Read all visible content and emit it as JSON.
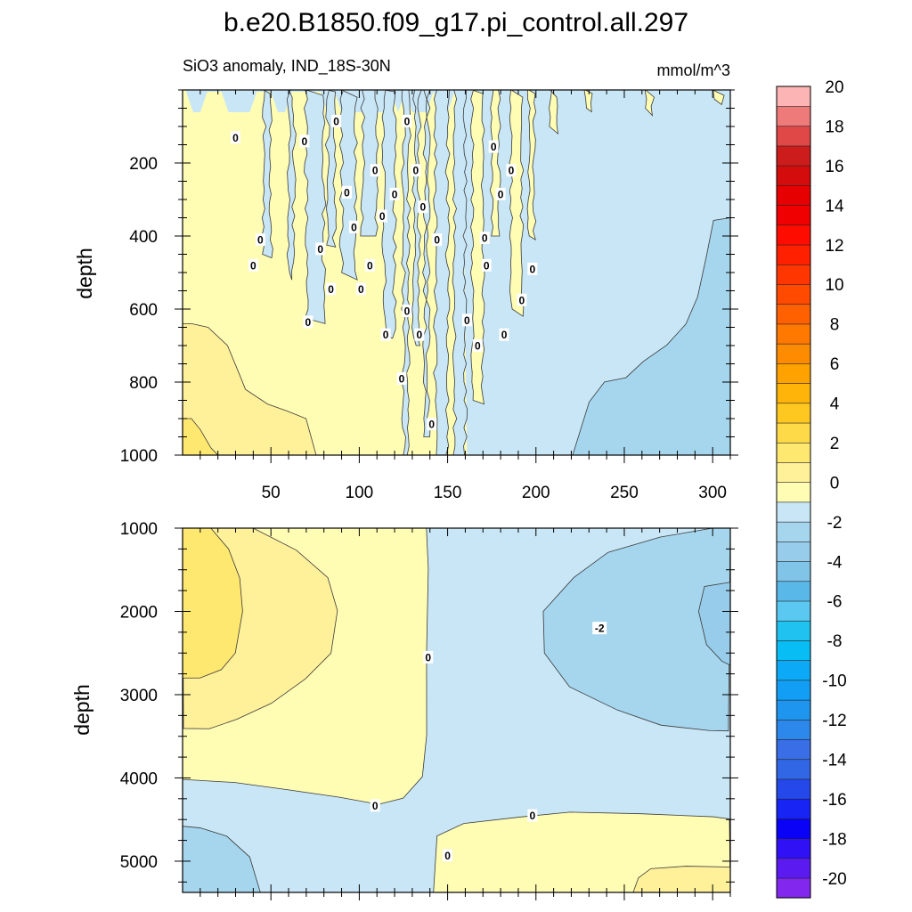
{
  "chart_data": {
    "type": "heatmap",
    "title": "b.e20.B1850.f09_g17.pi_control.all.297",
    "subtitle_left": "SiO3 anomaly, IND_18S-30N",
    "subtitle_right": "mmol/m^3",
    "x_range": [
      0,
      310
    ],
    "x_ticks": [
      50,
      100,
      150,
      200,
      250,
      300
    ],
    "panels": [
      {
        "name": "upper",
        "ylabel": "depth",
        "ylim": [
          0,
          1000
        ],
        "y_reversed": true,
        "y_ticks": [
          200,
          400,
          600,
          800,
          1000
        ],
        "show_x_tick_labels": true,
        "contour_labels": [
          {
            "x": 30,
            "y": 130,
            "text": "0"
          },
          {
            "x": 69,
            "y": 140,
            "text": "0"
          },
          {
            "x": 87,
            "y": 85,
            "text": "0"
          },
          {
            "x": 127,
            "y": 85,
            "text": "0"
          },
          {
            "x": 109,
            "y": 220,
            "text": "0"
          },
          {
            "x": 132,
            "y": 220,
            "text": "0"
          },
          {
            "x": 176,
            "y": 155,
            "text": "0"
          },
          {
            "x": 186,
            "y": 220,
            "text": "0"
          },
          {
            "x": 93,
            "y": 280,
            "text": "0"
          },
          {
            "x": 120,
            "y": 285,
            "text": "0"
          },
          {
            "x": 136,
            "y": 320,
            "text": "0"
          },
          {
            "x": 180,
            "y": 285,
            "text": "0"
          },
          {
            "x": 97,
            "y": 375,
            "text": "0"
          },
          {
            "x": 113,
            "y": 345,
            "text": "0"
          },
          {
            "x": 44,
            "y": 410,
            "text": "0"
          },
          {
            "x": 78,
            "y": 435,
            "text": "0"
          },
          {
            "x": 144,
            "y": 410,
            "text": "0"
          },
          {
            "x": 171,
            "y": 405,
            "text": "0"
          },
          {
            "x": 40,
            "y": 480,
            "text": "0"
          },
          {
            "x": 106,
            "y": 480,
            "text": "0"
          },
          {
            "x": 172,
            "y": 480,
            "text": "0"
          },
          {
            "x": 198,
            "y": 490,
            "text": "0"
          },
          {
            "x": 84,
            "y": 545,
            "text": "0"
          },
          {
            "x": 101,
            "y": 545,
            "text": "0"
          },
          {
            "x": 192,
            "y": 575,
            "text": "0"
          },
          {
            "x": 127,
            "y": 605,
            "text": "0"
          },
          {
            "x": 71,
            "y": 635,
            "text": "0"
          },
          {
            "x": 161,
            "y": 630,
            "text": "0"
          },
          {
            "x": 115,
            "y": 670,
            "text": "0"
          },
          {
            "x": 134,
            "y": 670,
            "text": "0"
          },
          {
            "x": 167,
            "y": 700,
            "text": "0"
          },
          {
            "x": 182,
            "y": 670,
            "text": "0"
          },
          {
            "x": 124,
            "y": 790,
            "text": "0"
          },
          {
            "x": 141,
            "y": 915,
            "text": "0"
          }
        ]
      },
      {
        "name": "lower",
        "ylabel": "depth",
        "ylim": [
          1000,
          5375
        ],
        "y_reversed": true,
        "y_ticks": [
          1000,
          2000,
          3000,
          4000,
          5000
        ],
        "show_x_tick_labels": false,
        "contour_labels": [
          {
            "x": 236,
            "y": 2200,
            "text": "-2"
          },
          {
            "x": 139,
            "y": 2550,
            "text": "0"
          },
          {
            "x": 109,
            "y": 4330,
            "text": "0"
          },
          {
            "x": 198,
            "y": 4450,
            "text": "0"
          },
          {
            "x": 150,
            "y": 4930,
            "text": "0"
          }
        ]
      }
    ],
    "colorbar": {
      "levels": [
        -20,
        -19,
        -18,
        -17,
        -16,
        -15,
        -14,
        -13,
        -12,
        -11,
        -10,
        -9,
        -8,
        -7,
        -6,
        -5,
        -4,
        -3,
        -2,
        -1,
        0,
        1,
        2,
        3,
        4,
        5,
        6,
        7,
        8,
        9,
        10,
        11,
        12,
        13,
        14,
        15,
        16,
        17,
        18,
        19,
        20
      ],
      "tick_labels": [
        "20",
        "18",
        "16",
        "14",
        "12",
        "10",
        "8",
        "6",
        "4",
        "2",
        "0",
        "-2",
        "-4",
        "-6",
        "-8",
        "-10",
        "-12",
        "-14",
        "-16",
        "-18",
        "-20"
      ],
      "colors_bottom_to_top": [
        "#8228ee",
        "#5a1af0",
        "#3010f4",
        "#0a02f6",
        "#1824f4",
        "#2448ea",
        "#3166e4",
        "#3a6ee6",
        "#2c88ea",
        "#1e96f0",
        "#129ef4",
        "#0caaf6",
        "#08bcf4",
        "#20c2f0",
        "#5ac8f0",
        "#5ab8e8",
        "#80c4e8",
        "#98cceb",
        "#a6d6ee",
        "#c8e6f6",
        "#fffcb4",
        "#fff09a",
        "#ffe870",
        "#ffda48",
        "#ffc820",
        "#ffb40a",
        "#ffa200",
        "#ff8c00",
        "#ff7800",
        "#ff6000",
        "#ff4a00",
        "#ff3600",
        "#ff2000",
        "#ff0c00",
        "#f00000",
        "#e60000",
        "#d40c0c",
        "#cc1c1c",
        "#e04848",
        "#ef7a7a",
        "#fcb4b4"
      ]
    }
  }
}
